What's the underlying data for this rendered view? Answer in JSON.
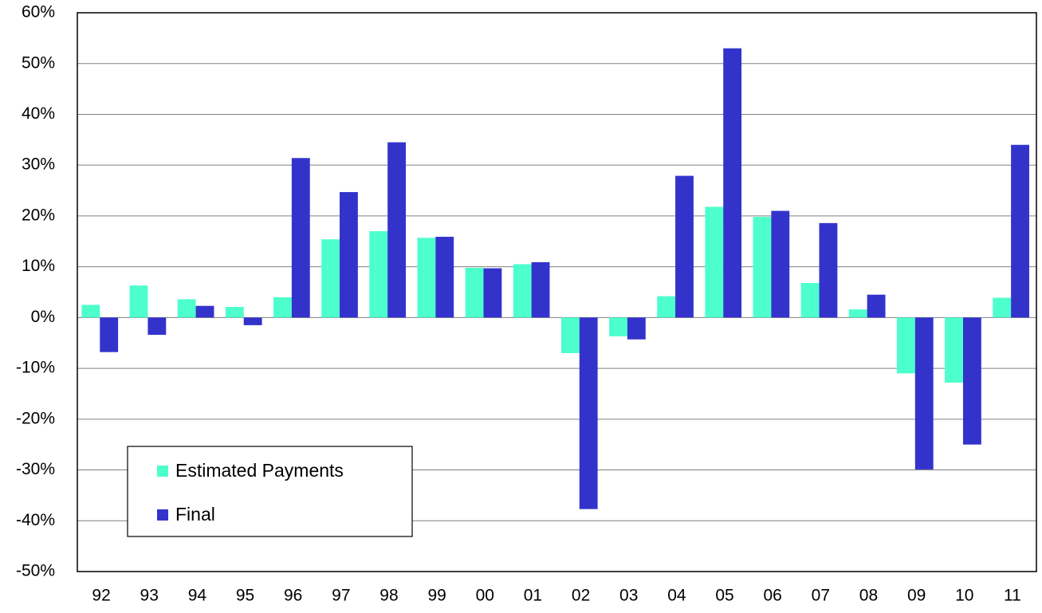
{
  "chart_data": {
    "type": "bar",
    "categories": [
      "92",
      "93",
      "94",
      "95",
      "96",
      "97",
      "98",
      "99",
      "00",
      "01",
      "02",
      "03",
      "04",
      "05",
      "06",
      "07",
      "08",
      "09",
      "10",
      "11"
    ],
    "series": [
      {
        "name": "Estimated Payments",
        "color": "#4dffcc",
        "values": [
          2.5,
          6.3,
          3.6,
          2.1,
          4.0,
          15.4,
          17.0,
          15.7,
          9.8,
          10.5,
          -7.0,
          -3.7,
          4.2,
          21.8,
          19.8,
          6.8,
          1.6,
          -11.0,
          -12.8,
          3.9
        ]
      },
      {
        "name": "Final",
        "color": "#3333cc",
        "values": [
          -6.8,
          -3.4,
          2.3,
          -1.5,
          31.4,
          24.7,
          34.5,
          15.9,
          9.7,
          10.9,
          -37.7,
          -4.3,
          27.9,
          53.0,
          21.0,
          18.6,
          4.5,
          -29.9,
          -25.0,
          34.0
        ]
      }
    ],
    "ylim": [
      -50,
      60
    ],
    "yticks": [
      {
        "value": -50,
        "label": "-50%"
      },
      {
        "value": -40,
        "label": "-40%"
      },
      {
        "value": -30,
        "label": "-30%"
      },
      {
        "value": -20,
        "label": "-20%"
      },
      {
        "value": -10,
        "label": "-10%"
      },
      {
        "value": 0,
        "label": "0%"
      },
      {
        "value": 10,
        "label": "10%"
      },
      {
        "value": 20,
        "label": "20%"
      },
      {
        "value": 30,
        "label": "30%"
      },
      {
        "value": 40,
        "label": "40%"
      },
      {
        "value": 50,
        "label": "50%"
      },
      {
        "value": 60,
        "label": "60%"
      }
    ],
    "grid": true,
    "legend": "lower-left"
  }
}
